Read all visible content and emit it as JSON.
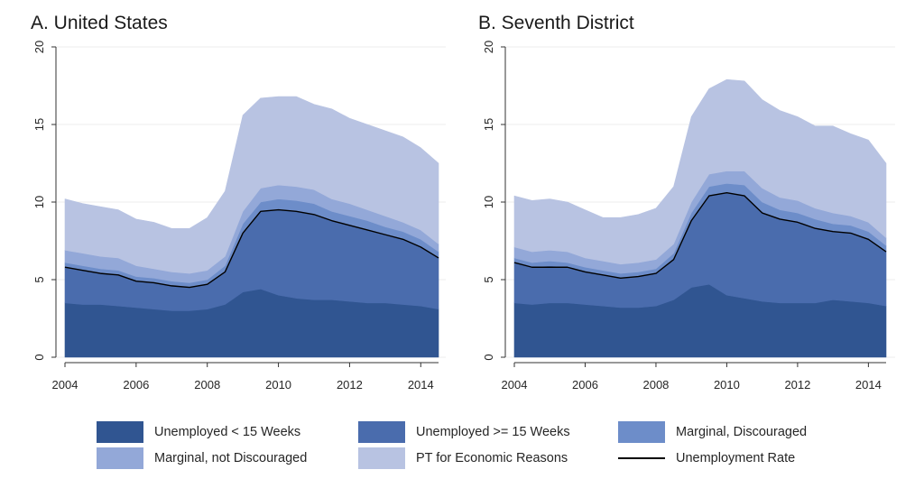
{
  "colors": {
    "unemployed_short": "#305591",
    "unemployed_long": "#4a6cad",
    "marginal_discouraged": "#6d8dc9",
    "marginal_not_discouraged": "#93a8d8",
    "pt_economic": "#b8c3e2",
    "unemployment_rate": "#000000",
    "grid": "#ececec",
    "axis": "#333333"
  },
  "legend": [
    {
      "key": "unemployed_short",
      "label": "Unemployed < 15 Weeks",
      "kind": "area"
    },
    {
      "key": "unemployed_long",
      "label": "Unemployed >= 15 Weeks",
      "kind": "area"
    },
    {
      "key": "marginal_discouraged",
      "label": "Marginal, Discouraged",
      "kind": "area"
    },
    {
      "key": "marginal_not_discouraged",
      "label": "Marginal, not Discouraged",
      "kind": "area"
    },
    {
      "key": "pt_economic",
      "label": "PT for Economic Reasons",
      "kind": "area"
    },
    {
      "key": "unemployment_rate",
      "label": "Unemployment Rate",
      "kind": "line"
    }
  ],
  "chart_data": [
    {
      "type": "area",
      "stacked": true,
      "title": "A. United States",
      "xlabel": "",
      "ylabel": "",
      "xlim": [
        2004,
        2014.5
      ],
      "ylim": [
        0,
        20
      ],
      "xticks": [
        2004,
        2006,
        2008,
        2010,
        2012,
        2014
      ],
      "yticks": [
        0,
        5,
        10,
        15,
        20
      ],
      "grid": true,
      "x": [
        2004,
        2004.5,
        2005,
        2005.5,
        2006,
        2006.5,
        2007,
        2007.5,
        2008,
        2008.5,
        2009,
        2009.5,
        2010,
        2010.5,
        2011,
        2011.5,
        2012,
        2012.5,
        2013,
        2013.5,
        2014,
        2014.5
      ],
      "series": [
        {
          "key": "unemployed_short",
          "name": "Unemployed < 15 Weeks",
          "values": [
            3.5,
            3.4,
            3.4,
            3.3,
            3.2,
            3.1,
            3.0,
            3.0,
            3.1,
            3.4,
            4.2,
            4.4,
            4.0,
            3.8,
            3.7,
            3.7,
            3.6,
            3.5,
            3.5,
            3.4,
            3.3,
            3.1
          ]
        },
        {
          "key": "unemployed_long",
          "name": "Unemployed >= 15 Weeks",
          "values": [
            2.3,
            2.2,
            2.0,
            2.0,
            1.7,
            1.7,
            1.6,
            1.5,
            1.6,
            2.1,
            3.8,
            5.0,
            5.5,
            5.6,
            5.5,
            5.1,
            4.9,
            4.7,
            4.4,
            4.2,
            3.8,
            3.3
          ]
        },
        {
          "key": "marginal_discouraged",
          "name": "Marginal, Discouraged",
          "values": [
            0.3,
            0.3,
            0.3,
            0.3,
            0.3,
            0.3,
            0.3,
            0.3,
            0.3,
            0.4,
            0.6,
            0.6,
            0.7,
            0.7,
            0.7,
            0.6,
            0.6,
            0.6,
            0.5,
            0.5,
            0.5,
            0.4
          ]
        },
        {
          "key": "marginal_not_discouraged",
          "name": "Marginal, not Discouraged",
          "values": [
            0.8,
            0.8,
            0.8,
            0.8,
            0.7,
            0.6,
            0.6,
            0.6,
            0.6,
            0.6,
            0.8,
            0.9,
            0.9,
            0.9,
            0.9,
            0.8,
            0.8,
            0.7,
            0.7,
            0.6,
            0.6,
            0.5
          ]
        },
        {
          "key": "pt_economic",
          "name": "PT for Economic Reasons",
          "values": [
            3.3,
            3.2,
            3.2,
            3.1,
            3.0,
            3.0,
            2.8,
            2.9,
            3.4,
            4.2,
            6.2,
            5.8,
            5.7,
            5.8,
            5.5,
            5.8,
            5.5,
            5.5,
            5.5,
            5.5,
            5.3,
            5.2
          ]
        }
      ],
      "line": {
        "key": "unemployment_rate",
        "name": "Unemployment Rate",
        "values": [
          5.8,
          5.6,
          5.4,
          5.3,
          4.9,
          4.8,
          4.6,
          4.5,
          4.7,
          5.5,
          8.0,
          9.4,
          9.5,
          9.4,
          9.2,
          8.8,
          8.5,
          8.2,
          7.9,
          7.6,
          7.1,
          6.4
        ]
      }
    },
    {
      "type": "area",
      "stacked": true,
      "title": "B. Seventh District",
      "xlabel": "",
      "ylabel": "",
      "xlim": [
        2004,
        2014.5
      ],
      "ylim": [
        0,
        20
      ],
      "xticks": [
        2004,
        2006,
        2008,
        2010,
        2012,
        2014
      ],
      "yticks": [
        0,
        5,
        10,
        15,
        20
      ],
      "grid": true,
      "x": [
        2004,
        2004.5,
        2005,
        2005.5,
        2006,
        2006.5,
        2007,
        2007.5,
        2008,
        2008.5,
        2009,
        2009.5,
        2010,
        2010.5,
        2011,
        2011.5,
        2012,
        2012.5,
        2013,
        2013.5,
        2014,
        2014.5
      ],
      "series": [
        {
          "key": "unemployed_short",
          "name": "Unemployed < 15 Weeks",
          "values": [
            3.5,
            3.4,
            3.5,
            3.5,
            3.4,
            3.3,
            3.2,
            3.2,
            3.3,
            3.7,
            4.5,
            4.7,
            4.0,
            3.8,
            3.6,
            3.5,
            3.5,
            3.5,
            3.7,
            3.6,
            3.5,
            3.3
          ]
        },
        {
          "key": "unemployed_long",
          "name": "Unemployed >= 15 Weeks",
          "values": [
            2.6,
            2.4,
            2.4,
            2.3,
            2.1,
            2.0,
            1.9,
            2.0,
            2.1,
            2.6,
            4.3,
            5.7,
            6.6,
            6.6,
            5.7,
            5.4,
            5.2,
            4.8,
            4.4,
            4.4,
            4.1,
            3.5
          ]
        },
        {
          "key": "marginal_discouraged",
          "name": "Marginal, Discouraged",
          "values": [
            0.3,
            0.3,
            0.3,
            0.3,
            0.3,
            0.3,
            0.3,
            0.3,
            0.3,
            0.4,
            0.5,
            0.6,
            0.6,
            0.7,
            0.7,
            0.6,
            0.6,
            0.6,
            0.5,
            0.5,
            0.5,
            0.4
          ]
        },
        {
          "key": "marginal_not_discouraged",
          "name": "Marginal, not Discouraged",
          "values": [
            0.7,
            0.7,
            0.7,
            0.7,
            0.6,
            0.6,
            0.6,
            0.6,
            0.6,
            0.6,
            0.7,
            0.8,
            0.8,
            0.9,
            0.9,
            0.8,
            0.8,
            0.7,
            0.7,
            0.6,
            0.6,
            0.5
          ]
        },
        {
          "key": "pt_economic",
          "name": "PT for Economic Reasons",
          "values": [
            3.3,
            3.3,
            3.3,
            3.2,
            3.1,
            2.8,
            3.0,
            3.1,
            3.3,
            3.7,
            5.5,
            5.5,
            5.9,
            5.8,
            5.7,
            5.6,
            5.4,
            5.3,
            5.6,
            5.3,
            5.3,
            4.8
          ]
        }
      ],
      "line": {
        "key": "unemployment_rate",
        "name": "Unemployment Rate",
        "values": [
          6.1,
          5.8,
          5.8,
          5.8,
          5.5,
          5.3,
          5.1,
          5.2,
          5.4,
          6.3,
          8.8,
          10.4,
          10.6,
          10.4,
          9.3,
          8.9,
          8.7,
          8.3,
          8.1,
          8.0,
          7.6,
          6.8
        ]
      }
    }
  ]
}
